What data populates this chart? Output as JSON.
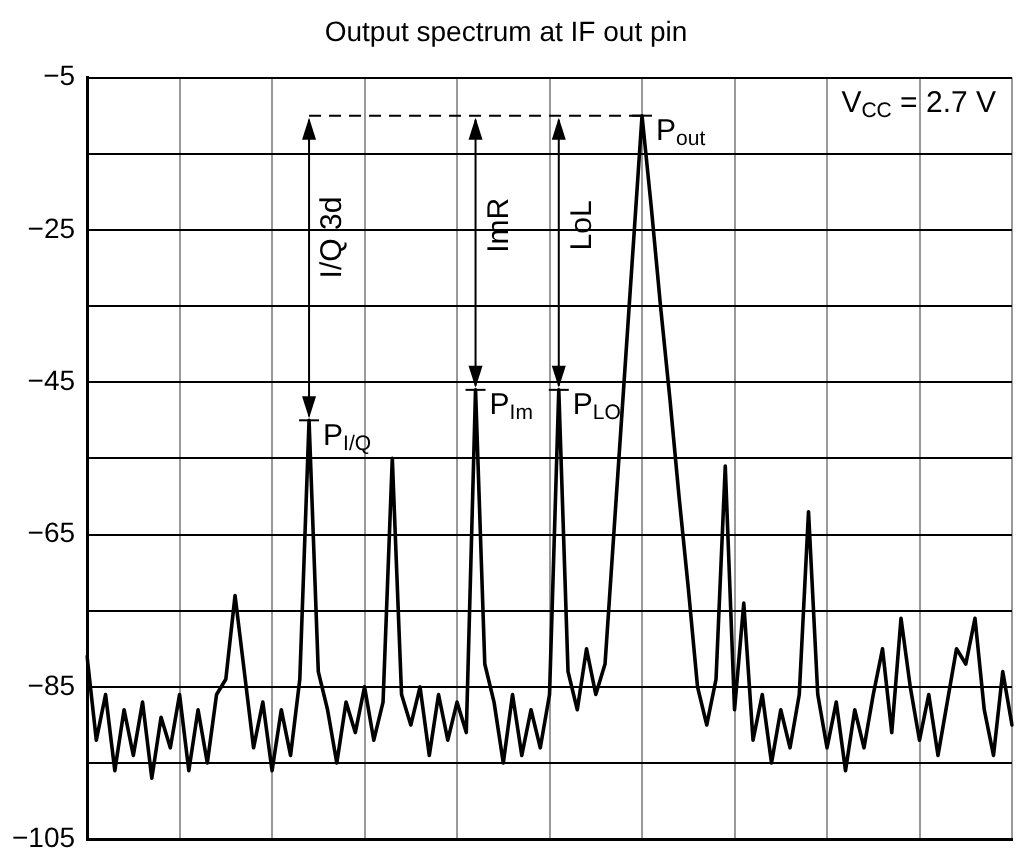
{
  "chart_data": {
    "type": "line",
    "title": "Output spectrum at IF out pin",
    "categories": [
      null,
      null,
      null,
      null,
      null,
      null,
      null,
      null,
      null,
      null,
      null,
      null,
      null,
      null,
      null,
      null,
      null,
      null,
      null,
      null,
      null,
      null,
      null,
      null,
      null,
      null,
      null,
      null,
      null,
      null,
      null,
      null,
      null,
      null,
      null,
      null,
      null,
      null,
      null,
      null,
      null,
      null,
      null,
      null,
      null,
      null,
      null,
      null,
      null,
      null,
      null,
      null,
      null,
      null,
      null,
      null,
      null,
      null,
      null,
      null,
      null,
      null,
      null,
      null,
      null,
      null,
      null,
      null,
      null,
      null,
      null,
      null,
      null,
      null,
      null,
      null,
      null,
      null,
      null,
      null,
      null,
      null,
      null,
      null,
      null,
      null,
      null,
      null,
      null,
      null,
      null,
      null,
      null,
      null,
      null,
      null,
      null,
      null,
      null,
      null,
      null
    ],
    "series": [
      {
        "color": "#000000",
        "values": [
          -81,
          -92,
          -86,
          -96,
          -88,
          -94,
          -87,
          -97,
          -89,
          -93,
          -86,
          -96,
          -88,
          -95,
          -86,
          -84,
          -73,
          -83,
          -93,
          -87,
          -96,
          -88,
          -94,
          -84,
          -50,
          -83,
          -88,
          -95,
          -87,
          -91,
          -85,
          -92,
          -87,
          -55,
          -86,
          -90,
          -85,
          -94,
          -86,
          -92,
          -87,
          -91,
          -46,
          -82,
          -87,
          -95,
          -86,
          -94,
          -88,
          -93,
          -86,
          -46,
          -83,
          -88,
          -80,
          -86,
          -82,
          -64,
          -46,
          -28,
          -10,
          -22,
          -35,
          -47,
          -60,
          -72,
          -85,
          -90,
          -84,
          -56,
          -88,
          -74,
          -92,
          -86,
          -95,
          -88,
          -93,
          -86,
          -62,
          -86,
          -93,
          -87,
          -96,
          -88,
          -93,
          -86,
          -80,
          -91,
          -76,
          -85,
          -92,
          -86,
          -94,
          -87,
          -80,
          -82,
          -76,
          -88,
          -94,
          -83,
          -90
        ]
      }
    ],
    "ylim": [
      -105,
      -5
    ],
    "yticks": [
      {
        "value": -105,
        "label": "−105"
      },
      {
        "value": -95,
        "label": null
      },
      {
        "value": -85,
        "label": "−85"
      },
      {
        "value": -75,
        "label": null
      },
      {
        "value": -65,
        "label": "−65"
      },
      {
        "value": -55,
        "label": null
      },
      {
        "value": -45,
        "label": "−45"
      },
      {
        "value": -35,
        "label": null
      },
      {
        "value": -25,
        "label": "−25"
      },
      {
        "value": -15,
        "label": null
      },
      {
        "value": -5,
        "label": "−5"
      }
    ],
    "tick_labels": "y",
    "grid": true,
    "legend": false,
    "marker": "none",
    "line_style": "solid",
    "ref_lines": [
      {
        "axis": "y",
        "value": -10,
        "line_style": "dashed",
        "color": "#000000"
      }
    ],
    "annotations": [
      "I/Q 3d",
      "ImR",
      "LoL",
      "P$_{I/Q}$",
      "P$_{Im}$",
      "P$_{LO}$",
      "P$_{out}$",
      "V$_{CC}$ = 2.7 V"
    ]
  }
}
